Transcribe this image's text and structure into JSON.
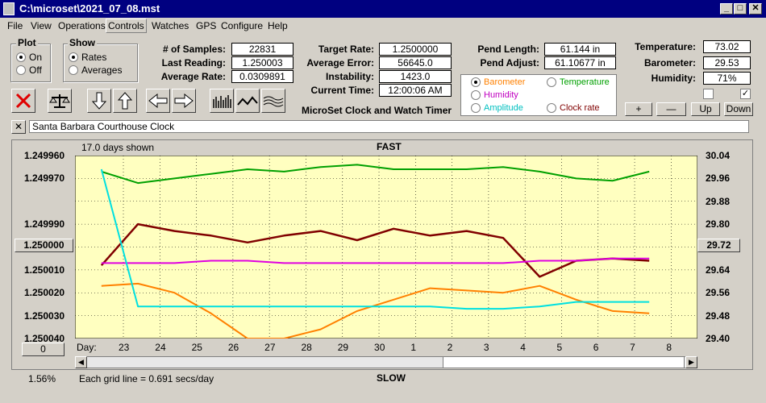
{
  "window": {
    "title": "C:\\microset\\2021_07_08.mst"
  },
  "menu": [
    "File",
    "View",
    "Operations",
    "Controls",
    "Watches",
    "GPS",
    "Configure",
    "Help"
  ],
  "plot_group": {
    "label": "Plot",
    "options": [
      "On",
      "Off"
    ],
    "selected": "On"
  },
  "show_group": {
    "label": "Show",
    "options": [
      "Rates",
      "Averages"
    ],
    "selected": "Rates"
  },
  "stats": {
    "samples_label": "# of Samples:",
    "samples": "22831",
    "last_label": "Last Reading:",
    "last": "1.250003",
    "avg_label": "Average Rate:",
    "avg": "0.0309891",
    "target_label": "Target Rate:",
    "target": "1.2500000",
    "avgerr_label": "Average Error:",
    "avgerr": "56645.0 min/day",
    "instab_label": "Instability:",
    "instab": "1423.0 mins/day",
    "time_label": "Current Time:",
    "time": "12:00:06 AM",
    "pend_len_label": "Pend Length:",
    "pend_len": "61.144 in",
    "pend_adj_label": "Pend Adjust:",
    "pend_adj": "61.10677 in",
    "temp_label": "Temperature:",
    "temp": "73.02",
    "baro_label": "Barometer:",
    "baro": "29.53",
    "hum_label": "Humidity:",
    "hum": "71%"
  },
  "app_name": "MicroSet Clock and Watch Timer",
  "legend": {
    "items": [
      {
        "label": "Barometer",
        "color": "#ff8000",
        "selected": true
      },
      {
        "label": "Temperature",
        "color": "#00a000",
        "selected": false
      },
      {
        "label": "Humidity",
        "color": "#c000c0",
        "selected": false
      },
      {
        "label": "Clock rate",
        "color": "#800000",
        "selected": false
      },
      {
        "label": "Amplitude",
        "color": "#00c0c0",
        "selected": false
      }
    ]
  },
  "env_buttons": [
    "+",
    "—",
    "Up",
    "Down"
  ],
  "clock_name": "Santa Barbara Courthouse Clock",
  "plot": {
    "days_shown": "17.0 days shown",
    "top_label": "FAST",
    "bottom_label": "SLOW",
    "grid_note": "Each grid line = 0.691 secs/day",
    "zoom": "1.56%",
    "day_prefix": "Day:",
    "left_button": "1.250000",
    "left_button_bottom": "0",
    "right_button": "29.72"
  },
  "chart_data": {
    "type": "line",
    "x": [
      "23",
      "24",
      "25",
      "26",
      "27",
      "28",
      "29",
      "30",
      "1",
      "2",
      "3",
      "4",
      "5",
      "6",
      "7",
      "8"
    ],
    "left_axis": {
      "ticks": [
        "1.249960",
        "1.249970",
        "1.249990",
        "1.250000",
        "1.250010",
        "1.250020",
        "1.250030",
        "1.250040"
      ]
    },
    "right_axis": {
      "ticks": [
        "30.04",
        "29.96",
        "29.88",
        "29.80",
        "29.72",
        "29.64",
        "29.56",
        "29.48",
        "29.40"
      ]
    },
    "series": [
      {
        "name": "Clock rate",
        "color": "#800000",
        "values": [
          1.250008,
          1.24999,
          1.249993,
          1.249995,
          1.249998,
          1.249995,
          1.249993,
          1.249997,
          1.249992,
          1.249995,
          1.249993,
          1.249996,
          1.250013,
          1.250006,
          1.250005,
          1.250006
        ]
      },
      {
        "name": "Temperature",
        "color": "#00a000",
        "values": [
          1.249967,
          1.249972,
          1.24997,
          1.249968,
          1.249966,
          1.249967,
          1.249965,
          1.249964,
          1.249966,
          1.249966,
          1.249966,
          1.249965,
          1.249967,
          1.24997,
          1.249971,
          1.249967
        ]
      },
      {
        "name": "Humidity",
        "color": "#e000e0",
        "values": [
          1.250007,
          1.250007,
          1.250007,
          1.250006,
          1.250006,
          1.250007,
          1.250007,
          1.250007,
          1.250007,
          1.250007,
          1.250007,
          1.250007,
          1.250006,
          1.250006,
          1.250005,
          1.250005
        ]
      },
      {
        "name": "Barometer",
        "color": "#ff8000",
        "values": [
          1.250017,
          1.250016,
          1.25002,
          1.250029,
          1.25004,
          1.25004,
          1.250036,
          1.250028,
          1.250023,
          1.250018,
          1.250019,
          1.25002,
          1.250017,
          1.250023,
          1.250028,
          1.250029
        ]
      },
      {
        "name": "Amplitude",
        "color": "#00e0e0",
        "values": [
          1.249966,
          1.250026,
          1.250026,
          1.250026,
          1.250026,
          1.250026,
          1.250026,
          1.250026,
          1.250026,
          1.250026,
          1.250027,
          1.250027,
          1.250026,
          1.250024,
          1.250024,
          1.250024
        ]
      }
    ]
  }
}
